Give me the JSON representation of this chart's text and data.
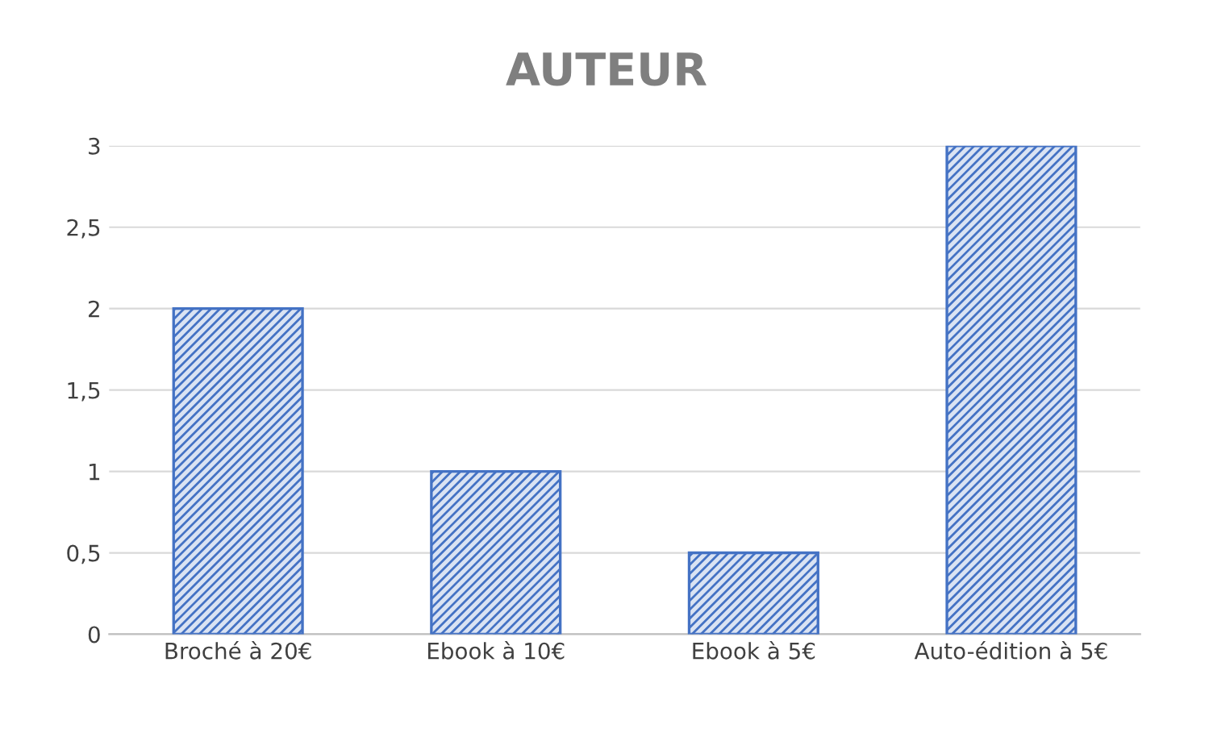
{
  "chart_data": {
    "type": "bar",
    "title": "AUTEUR",
    "categories": [
      "Broché à 20€",
      "Ebook à 10€",
      "Ebook à 5€",
      "Auto-édition à 5€"
    ],
    "values": [
      2,
      1,
      0.5,
      3
    ],
    "color": "#4472c4",
    "ylim": [
      0,
      3
    ],
    "yticks": [
      0,
      {
        "value": 0.5,
        "label": "0,5"
      },
      1,
      {
        "value": 1.5,
        "label": "1,5"
      },
      2,
      {
        "value": 2.5,
        "label": "2,5"
      },
      3
    ],
    "grid": "y"
  }
}
